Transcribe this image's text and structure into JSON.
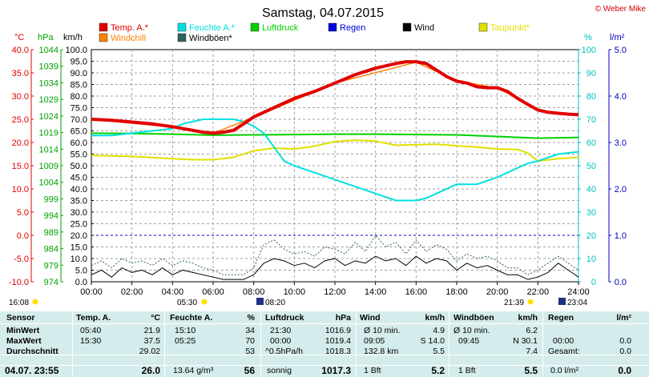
{
  "title": "Samstag, 04.07.2015",
  "copyright": "© Weber Mike",
  "legend": [
    {
      "label": "Temp. A.*",
      "color": "#e00000"
    },
    {
      "label": "Feuchte A.*",
      "color": "#00e0e0"
    },
    {
      "label": "Luftdruck",
      "color": "#00d000"
    },
    {
      "label": "Regen",
      "color": "#0000e0"
    },
    {
      "label": "Wind",
      "color": "#000000"
    },
    {
      "label": "Taupunkt*",
      "color": "#e0e000"
    },
    {
      "label": "Windchill",
      "color": "#ff8000"
    },
    {
      "label": "Windböen*",
      "color": "#306060"
    }
  ],
  "axis_units": {
    "temp": "°C",
    "pressure": "hPa",
    "wind": "km/h",
    "humidity": "%",
    "rain": "l/m²"
  },
  "sun_events": {
    "sunrise": "05:30",
    "sunset": "21:39",
    "moonrise": "08:20",
    "moonset": "23:04",
    "sunrise_prev": "16:08"
  },
  "chart_data": {
    "type": "line",
    "title": "Samstag, 04.07.2015",
    "x_ticks": [
      "00:00",
      "02:00",
      "04:00",
      "06:00",
      "08:00",
      "10:00",
      "12:00",
      "14:00",
      "16:00",
      "18:00",
      "20:00",
      "22:00",
      "24:00"
    ],
    "x_range": [
      0,
      24
    ],
    "axes": {
      "temp": {
        "unit": "°C",
        "range": [
          -10,
          40
        ],
        "ticks": [
          "40.0",
          "35.0",
          "30.0",
          "25.0",
          "20.0",
          "15.0",
          "10.0",
          "5.0",
          "0.0",
          "-5.0",
          "-10.0"
        ]
      },
      "pressure": {
        "unit": "hPa",
        "range": [
          974,
          1044
        ],
        "ticks": [
          "1044",
          "1039",
          "1034",
          "1029",
          "1024",
          "1019",
          "1014",
          "1009",
          "1004",
          "999",
          "994",
          "989",
          "984",
          "979",
          "974"
        ]
      },
      "wind": {
        "unit": "km/h",
        "range": [
          0,
          100
        ],
        "ticks": [
          "100.0",
          "95.0",
          "90.0",
          "85.0",
          "80.0",
          "75.0",
          "70.0",
          "65.0",
          "60.0",
          "55.0",
          "50.0",
          "45.0",
          "40.0",
          "35.0",
          "30.0",
          "25.0",
          "20.0",
          "15.0",
          "10.0",
          "5.0",
          "0.0"
        ]
      },
      "humidity": {
        "unit": "%",
        "range": [
          0,
          100
        ],
        "ticks": [
          "100",
          "90",
          "80",
          "70",
          "60",
          "50",
          "40",
          "30",
          "20",
          "10",
          "0"
        ]
      },
      "rain": {
        "unit": "l/m²",
        "range": [
          0,
          5
        ],
        "ticks": [
          "5.0",
          "4.0",
          "3.0",
          "2.0",
          "1.0",
          "0.0"
        ]
      }
    },
    "grid": true,
    "series": [
      {
        "name": "Temp. A.*",
        "axis": "temp",
        "color": "#e00000",
        "x": [
          0,
          1,
          2,
          3,
          4,
          5,
          5.5,
          6,
          6.5,
          7,
          7.5,
          8,
          8.5,
          9,
          10,
          11,
          12,
          13,
          14,
          15,
          15.5,
          16,
          16.5,
          17,
          17.5,
          18,
          18.5,
          19,
          19.5,
          20,
          20.5,
          21,
          21.5,
          22,
          22.5,
          23,
          23.5,
          24
        ],
        "y": [
          25.0,
          24.8,
          24.4,
          24.0,
          23.4,
          22.6,
          22.2,
          22.0,
          22.2,
          22.6,
          24.0,
          25.5,
          26.5,
          27.5,
          29.5,
          31.0,
          32.8,
          34.6,
          36.0,
          37.0,
          37.4,
          37.4,
          37.0,
          35.6,
          34.2,
          33.2,
          32.8,
          32.0,
          31.8,
          31.8,
          31.0,
          29.5,
          28.2,
          27.0,
          26.5,
          26.3,
          26.1,
          26.0
        ]
      },
      {
        "name": "Windchill",
        "axis": "temp",
        "color": "#ff8000",
        "x": [
          0,
          4,
          6,
          8,
          12,
          16,
          18,
          20,
          21,
          22,
          23,
          24
        ],
        "y": [
          25.0,
          23.3,
          22.0,
          25.4,
          32.8,
          37.3,
          33.3,
          31.7,
          29.5,
          27.0,
          26.3,
          25.9
        ]
      },
      {
        "name": "Feuchte A.*",
        "axis": "humidity",
        "color": "#00e0e0",
        "x": [
          0,
          1,
          2,
          3,
          4,
          4.5,
          5,
          5.5,
          6,
          6.5,
          7,
          7.5,
          8,
          8.5,
          9,
          9.5,
          10,
          11,
          12,
          13,
          14,
          15,
          15.5,
          16,
          16.5,
          17,
          17.5,
          18,
          19,
          20,
          20.5,
          21,
          21.5,
          22,
          23,
          24
        ],
        "y": [
          63,
          63,
          64,
          65,
          66,
          68,
          69,
          70,
          70,
          70,
          70,
          69,
          67,
          64,
          58,
          52,
          50,
          47,
          44,
          41,
          38,
          35,
          35,
          35,
          36,
          38,
          40,
          42,
          42,
          45,
          47,
          49,
          51,
          52,
          55,
          56
        ]
      },
      {
        "name": "Luftdruck",
        "axis": "pressure",
        "color": "#00d000",
        "x": [
          0,
          2,
          4,
          6,
          8,
          10,
          12,
          14,
          16,
          18,
          20,
          22,
          24
        ],
        "y": [
          1018.8,
          1018.7,
          1018.5,
          1018.2,
          1018.3,
          1018.4,
          1018.5,
          1018.5,
          1018.4,
          1018.3,
          1017.8,
          1017.3,
          1017.5
        ]
      },
      {
        "name": "Taupunkt*",
        "axis": "temp",
        "color": "#e0e000",
        "x": [
          0,
          2,
          4,
          5,
          6,
          7,
          8,
          9,
          10,
          11,
          12,
          13,
          14,
          15,
          16,
          17,
          18,
          19,
          20,
          21,
          21.5,
          22,
          23,
          24
        ],
        "y": [
          17.2,
          17.0,
          16.5,
          16.3,
          16.3,
          16.8,
          18.2,
          18.8,
          18.6,
          19.2,
          20.2,
          20.5,
          20.3,
          19.4,
          19.5,
          19.6,
          19.3,
          19.0,
          18.6,
          18.5,
          17.7,
          16.0,
          16.5,
          16.8
        ]
      },
      {
        "name": "Wind",
        "axis": "wind",
        "color": "#000000",
        "x": [
          0,
          0.5,
          1,
          1.5,
          2,
          2.5,
          3,
          3.5,
          4,
          4.5,
          5,
          5.5,
          6,
          6.5,
          7,
          7.5,
          8,
          8.5,
          9,
          9.5,
          10,
          10.5,
          11,
          11.5,
          12,
          12.5,
          13,
          13.5,
          14,
          14.5,
          15,
          15.5,
          16,
          16.5,
          17,
          17.5,
          18,
          18.5,
          19,
          19.5,
          20,
          20.5,
          21,
          21.5,
          22,
          22.5,
          23,
          23.5,
          24
        ],
        "y": [
          3,
          5,
          2,
          6,
          4,
          5,
          3,
          6,
          3,
          5,
          4,
          3,
          2,
          1,
          1,
          1,
          3,
          8,
          10,
          9,
          7,
          8,
          6,
          9,
          10,
          7,
          9,
          8,
          11,
          9,
          10,
          7,
          11,
          8,
          10,
          9,
          5,
          8,
          6,
          7,
          5,
          3,
          3,
          1,
          2,
          4,
          8,
          5,
          2
        ]
      },
      {
        "name": "Windböen*",
        "axis": "wind",
        "color": "#306060",
        "x": [
          0,
          0.5,
          1,
          1.5,
          2,
          2.5,
          3,
          3.5,
          4,
          4.5,
          5,
          5.5,
          6,
          6.5,
          7,
          7.5,
          8,
          8.5,
          9,
          9.5,
          10,
          10.5,
          11,
          11.5,
          12,
          12.5,
          13,
          13.5,
          14,
          14.5,
          15,
          15.5,
          16,
          16.5,
          17,
          17.5,
          18,
          18.5,
          19,
          19.5,
          20,
          20.5,
          21,
          21.5,
          22,
          22.5,
          23,
          23.5,
          24
        ],
        "y": [
          7,
          9,
          6,
          10,
          8,
          9,
          7,
          10,
          7,
          9,
          8,
          6,
          5,
          3,
          3,
          3,
          6,
          16,
          18,
          14,
          12,
          13,
          11,
          15,
          14,
          12,
          17,
          13,
          20,
          15,
          17,
          12,
          18,
          13,
          16,
          14,
          9,
          12,
          10,
          11,
          9,
          6,
          6,
          3,
          5,
          8,
          11,
          8,
          5
        ]
      }
    ]
  },
  "stats": {
    "headers": {
      "sensor": "Sensor",
      "temp": "Temp. A.",
      "temp_unit": "°C",
      "hum": "Feuchte A.",
      "hum_unit": "%",
      "press": "Luftdruck",
      "press_unit": "hPa",
      "wind": "Wind",
      "wind_unit": "km/h",
      "gust": "Windböen",
      "gust_unit": "km/h",
      "rain": "Regen",
      "rain_unit": "l/m²"
    },
    "min": {
      "label": "MinWert",
      "temp_time": "05:40",
      "temp": "21.9",
      "hum_time": "15:10",
      "hum": "34",
      "press_time": "21:30",
      "press": "1016.9",
      "wind_label": "Ø 10 min.",
      "wind": "4.9",
      "gust_label": "Ø 10 min.",
      "gust": "6.2"
    },
    "max": {
      "label": "MaxWert",
      "temp_time": "15:30",
      "temp": "37.5",
      "hum_time": "05:25",
      "hum": "70",
      "press_time": "00:00",
      "press": "1019.4",
      "wind_time": "09:05",
      "wind_dir": "S 14.0",
      "gust_time": "09:45",
      "gust_dir": "N 30.1",
      "rain_time": "00:00",
      "rain": "0.0"
    },
    "avg": {
      "label": "Durchschnitt",
      "temp": "29.02",
      "hum": "53",
      "press_label": "^0.5hPa/h",
      "press": "1018.3",
      "wind_dir": "132.8 km",
      "wind": "5.5",
      "gust": "7.4",
      "rain_label": "Gesamt:",
      "rain": "0.0"
    },
    "now": {
      "label": "04.07. 23:55",
      "temp": "26.0",
      "hum_label": "13.64 g/m³",
      "hum": "56",
      "press_label": "sonnig",
      "press": "1017.3",
      "wind_label": "1 Bft",
      "wind": "5.2",
      "gust_label": "1 Bft",
      "gust": "5.5",
      "rain_label": "0.0 l/m²",
      "rain": "0.0"
    }
  }
}
